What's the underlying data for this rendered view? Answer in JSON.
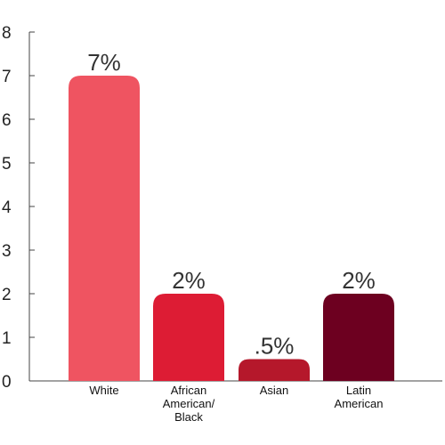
{
  "chart_data": {
    "type": "bar",
    "categories": [
      [
        "White"
      ],
      [
        "African",
        "American/",
        "Black"
      ],
      [
        "Asian"
      ],
      [
        "Latin",
        "American"
      ]
    ],
    "values": [
      7,
      2,
      0.5,
      2
    ],
    "data_labels": [
      "7%",
      "2%",
      ".5%",
      "2%"
    ],
    "bar_colors": [
      "#ef5461",
      "#dd1c34",
      "#b5182b",
      "#6d0020"
    ],
    "ylim": [
      0,
      8
    ],
    "yticks": [
      0,
      1,
      2,
      3,
      4,
      5,
      6,
      7,
      8
    ],
    "title": "",
    "xlabel": "",
    "ylabel": "",
    "grid": false
  }
}
